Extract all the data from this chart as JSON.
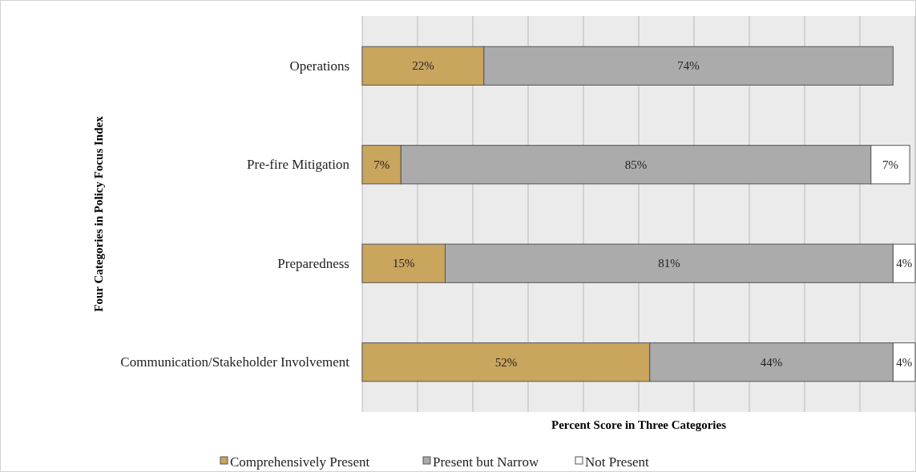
{
  "chart_data": {
    "type": "bar",
    "orientation": "horizontal",
    "stacked": true,
    "xlabel": "Percent Score in Three Categories",
    "ylabel": "Four Categories in Policy Focus Index",
    "categories": [
      "Operations",
      "Pre-fire Mitigation",
      "Preparedness",
      "Communication/Stakeholder Involvement"
    ],
    "series": [
      {
        "name": "Comprehensively Present",
        "color": "#c9a55e",
        "values": [
          22,
          7,
          15,
          52
        ],
        "value_labels": [
          "22%",
          "7%",
          "15%",
          "52%"
        ]
      },
      {
        "name": "Present but Narrow",
        "color": "#ababab",
        "values": [
          74,
          85,
          81,
          44
        ],
        "value_labels": [
          "74%",
          "85%",
          "81%",
          "44%"
        ]
      },
      {
        "name": "Not Present",
        "color": "#ffffff",
        "values": [
          null,
          7,
          4,
          4
        ],
        "value_labels": [
          null,
          "7%",
          "4%",
          "4%"
        ]
      }
    ],
    "tick_labels": "y",
    "grid": "x",
    "legend": "bottom"
  }
}
